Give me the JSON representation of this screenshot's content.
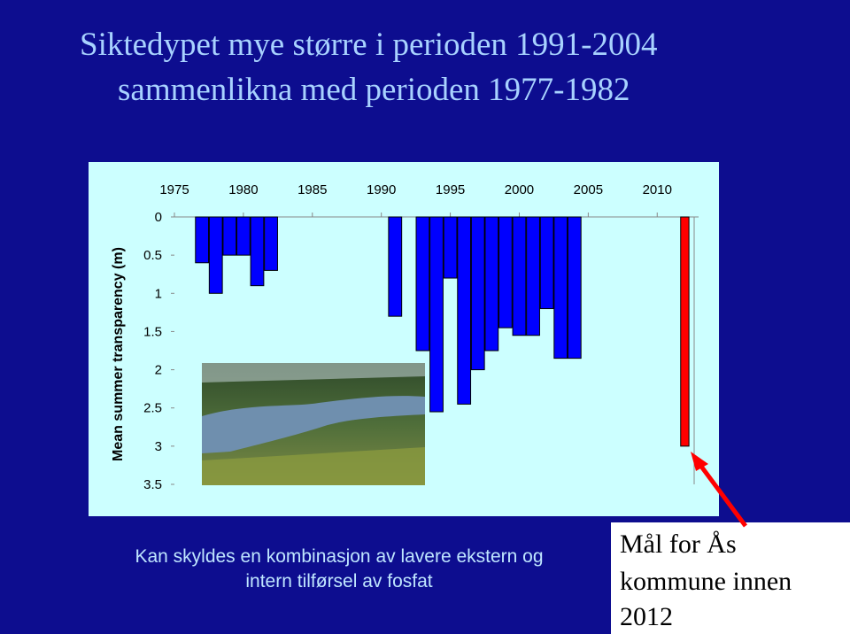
{
  "chart_data": {
    "type": "bar",
    "title": [
      "Siktedypet mye større i perioden 1991-2004",
      "sammenlikna med perioden 1977-1982"
    ],
    "y_label": "Mean summer transparency (m)",
    "series": [
      {
        "color": "#0000ff",
        "x": [
          1977,
          1978,
          1979,
          1980,
          1981,
          1982,
          1991,
          1993,
          1994,
          1995,
          1996,
          1997,
          1998,
          1999,
          2000,
          2001,
          2002,
          2003,
          2004
        ],
        "values": [
          0.6,
          1.0,
          0.5,
          0.5,
          0.9,
          0.7,
          1.3,
          1.75,
          2.55,
          0.8,
          2.45,
          2.0,
          1.75,
          1.45,
          1.55,
          1.55,
          1.2,
          1.85,
          1.85
        ]
      },
      {
        "color": "#ff0000",
        "x": [
          2012
        ],
        "values": [
          3.0
        ]
      }
    ],
    "xlim": [
      1975,
      2013
    ],
    "xticks": [
      1975,
      1980,
      1985,
      1990,
      1995,
      2000,
      2005,
      2010
    ],
    "ylim": [
      0,
      3.5
    ],
    "yticks": [
      0,
      0.5,
      1,
      1.5,
      2,
      2.5,
      3,
      3.5
    ],
    "y_inverted": true
  },
  "notes": {
    "bottom_text": [
      "Kan skyldes en kombinasjon av lavere ekstern og",
      "intern tilførsel av fosfat"
    ],
    "goal_box": [
      "Mål for Ås",
      "kommune innen",
      "2012"
    ]
  }
}
